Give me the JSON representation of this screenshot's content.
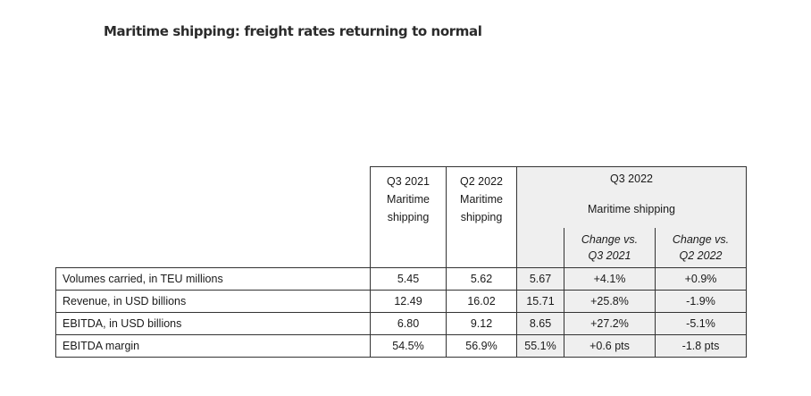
{
  "title": "Maritime shipping: freight rates returning to normal",
  "table": {
    "col_q3_2021": {
      "period": "Q3 2021",
      "segment_line1": "Maritime",
      "segment_line2": "shipping"
    },
    "col_q2_2022": {
      "period": "Q2 2022",
      "segment_line1": "Maritime",
      "segment_line2": "shipping"
    },
    "col_q3_2022": {
      "period": "Q3 2022",
      "segment": "Maritime shipping",
      "change_vs_q3_2021_line1": "Change vs.",
      "change_vs_q3_2021_line2": "Q3 2021",
      "change_vs_q2_2022_line1": "Change vs.",
      "change_vs_q2_2022_line2": "Q2 2022"
    },
    "rows": [
      {
        "label": "Volumes carried, in TEU millions",
        "q3_2021": "5.45",
        "q2_2022": "5.62",
        "q3_2022": "5.67",
        "chg_q3_2021": "+4.1%",
        "chg_q2_2022": "+0.9%"
      },
      {
        "label": "Revenue, in USD billions",
        "q3_2021": "12.49",
        "q2_2022": "16.02",
        "q3_2022": "15.71",
        "chg_q3_2021": "+25.8%",
        "chg_q2_2022": "-1.9%"
      },
      {
        "label": "EBITDA, in USD billions",
        "q3_2021": "6.80",
        "q2_2022": "9.12",
        "q3_2022": "8.65",
        "chg_q3_2021": "+27.2%",
        "chg_q2_2022": "-5.1%"
      },
      {
        "label": "EBITDA margin",
        "q3_2021": "54.5%",
        "q2_2022": "56.9%",
        "q3_2022": "55.1%",
        "chg_q3_2021": "+0.6 pts",
        "chg_q2_2022": "-1.8 pts"
      }
    ]
  }
}
